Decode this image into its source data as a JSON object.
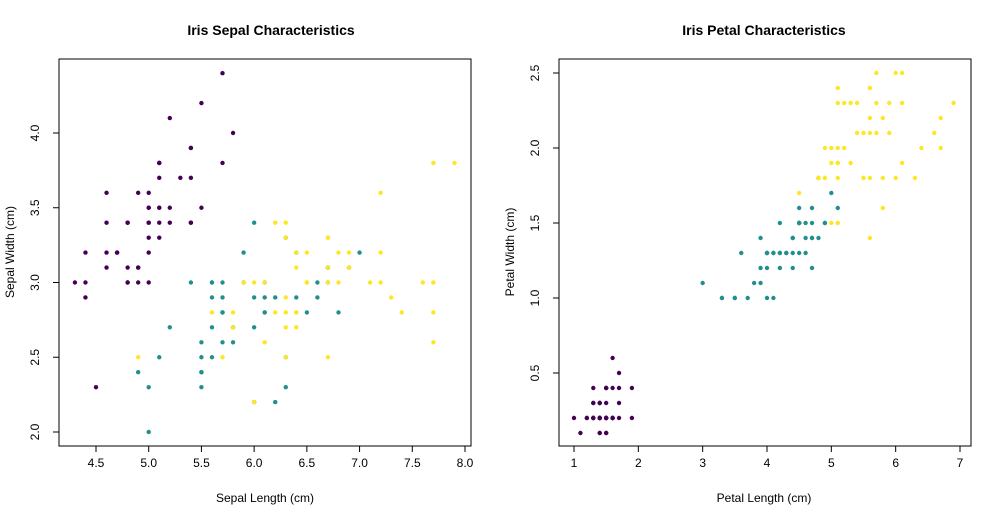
{
  "chart_data": [
    {
      "type": "scatter",
      "title": "Iris Sepal Characteristics",
      "xlabel": "Sepal Length (cm)",
      "ylabel": "Sepal Width (cm)",
      "xlim": [
        4.3,
        7.9
      ],
      "ylim": [
        2.0,
        4.4
      ],
      "xticks": [
        "4.5",
        "5.0",
        "5.5",
        "6.0",
        "6.5",
        "7.0",
        "7.5",
        "8.0"
      ],
      "yticks": [
        "2.0",
        "2.5",
        "3.0",
        "3.5",
        "4.0"
      ],
      "grid": false,
      "legend": "none",
      "series": [
        {
          "color": "#440154",
          "x": [
            5.1,
            4.9,
            4.7,
            4.6,
            5.0,
            5.4,
            4.6,
            5.0,
            4.4,
            4.9,
            5.4,
            4.8,
            4.8,
            4.3,
            5.8,
            5.7,
            5.4,
            5.1,
            5.7,
            5.1,
            5.4,
            5.1,
            4.6,
            5.1,
            4.8,
            5.0,
            5.0,
            5.2,
            5.2,
            4.7,
            4.8,
            5.4,
            5.2,
            5.5,
            4.9,
            5.0,
            5.5,
            4.9,
            4.4,
            5.1,
            5.0,
            4.5,
            4.4,
            5.0,
            5.1,
            4.8,
            5.1,
            4.6,
            5.3,
            5.0
          ],
          "y": [
            3.5,
            3.0,
            3.2,
            3.1,
            3.6,
            3.9,
            3.4,
            3.4,
            2.9,
            3.1,
            3.7,
            3.4,
            3.0,
            3.0,
            4.0,
            4.4,
            3.9,
            3.5,
            3.8,
            3.8,
            3.4,
            3.7,
            3.6,
            3.3,
            3.4,
            3.0,
            3.4,
            3.5,
            3.4,
            3.2,
            3.1,
            3.4,
            4.1,
            4.2,
            3.1,
            3.2,
            3.5,
            3.6,
            3.0,
            3.4,
            3.5,
            2.3,
            3.2,
            3.5,
            3.8,
            3.0,
            3.8,
            3.2,
            3.7,
            3.3
          ]
        },
        {
          "color": "#21908C",
          "x": [
            7.0,
            6.4,
            6.9,
            5.5,
            6.5,
            5.7,
            6.3,
            4.9,
            6.6,
            5.2,
            5.0,
            5.9,
            6.0,
            6.1,
            5.6,
            6.7,
            5.6,
            5.8,
            6.2,
            5.6,
            5.9,
            6.1,
            6.3,
            6.1,
            6.4,
            6.6,
            6.8,
            6.7,
            6.0,
            5.7,
            5.5,
            5.5,
            5.8,
            6.0,
            5.4,
            6.0,
            6.7,
            6.3,
            5.6,
            5.5,
            5.5,
            6.1,
            5.8,
            5.0,
            5.6,
            5.7,
            5.7,
            6.2,
            5.1,
            5.7
          ],
          "y": [
            3.2,
            3.2,
            3.1,
            2.3,
            2.8,
            2.8,
            3.3,
            2.4,
            2.9,
            2.7,
            2.0,
            3.0,
            2.2,
            2.9,
            2.9,
            3.1,
            3.0,
            2.7,
            2.2,
            2.5,
            3.2,
            2.8,
            2.5,
            2.8,
            2.9,
            3.0,
            2.8,
            3.0,
            2.9,
            2.6,
            2.4,
            2.4,
            2.7,
            2.7,
            3.0,
            3.4,
            3.1,
            2.3,
            3.0,
            2.5,
            2.6,
            3.0,
            2.6,
            2.3,
            2.7,
            3.0,
            2.9,
            2.9,
            2.5,
            2.8
          ]
        },
        {
          "color": "#FDE725",
          "x": [
            6.3,
            5.8,
            7.1,
            6.3,
            6.5,
            7.6,
            4.9,
            7.3,
            6.7,
            7.2,
            6.5,
            6.4,
            6.8,
            5.7,
            5.8,
            6.4,
            6.5,
            7.7,
            7.7,
            6.0,
            6.9,
            5.6,
            7.7,
            6.3,
            6.7,
            7.2,
            6.2,
            6.1,
            6.4,
            7.2,
            7.4,
            7.9,
            6.4,
            6.3,
            6.1,
            7.7,
            6.3,
            6.4,
            6.0,
            6.9,
            6.7,
            6.9,
            5.8,
            6.8,
            6.7,
            6.7,
            6.3,
            6.5,
            6.2,
            5.9
          ],
          "y": [
            3.3,
            2.7,
            3.0,
            2.9,
            3.0,
            3.0,
            2.5,
            2.9,
            2.5,
            3.6,
            3.2,
            2.7,
            3.0,
            2.5,
            2.8,
            3.2,
            3.0,
            3.8,
            2.6,
            2.2,
            3.2,
            2.8,
            2.8,
            2.7,
            3.3,
            3.2,
            2.8,
            3.0,
            2.8,
            3.0,
            2.8,
            3.8,
            2.8,
            2.8,
            2.6,
            3.0,
            3.4,
            3.1,
            3.0,
            3.1,
            3.1,
            3.1,
            2.7,
            3.2,
            3.3,
            3.0,
            2.5,
            3.0,
            3.4,
            3.0
          ]
        }
      ]
    },
    {
      "type": "scatter",
      "title": "Iris Petal Characteristics",
      "xlabel": "Petal Length (cm)",
      "ylabel": "Petal Width (cm)",
      "xlim": [
        1.0,
        6.9
      ],
      "ylim": [
        0.1,
        2.5
      ],
      "xticks": [
        "1",
        "2",
        "3",
        "4",
        "5",
        "6",
        "7"
      ],
      "yticks": [
        "0.5",
        "1.0",
        "1.5",
        "2.0",
        "2.5"
      ],
      "grid": false,
      "legend": "none",
      "series": [
        {
          "color": "#440154",
          "x": [
            1.4,
            1.4,
            1.3,
            1.5,
            1.4,
            1.7,
            1.4,
            1.5,
            1.4,
            1.5,
            1.5,
            1.6,
            1.4,
            1.1,
            1.2,
            1.5,
            1.3,
            1.4,
            1.7,
            1.5,
            1.7,
            1.5,
            1.0,
            1.7,
            1.9,
            1.6,
            1.6,
            1.5,
            1.4,
            1.6,
            1.6,
            1.5,
            1.5,
            1.4,
            1.5,
            1.2,
            1.3,
            1.4,
            1.3,
            1.5,
            1.3,
            1.3,
            1.3,
            1.6,
            1.9,
            1.4,
            1.6,
            1.4,
            1.5,
            1.4
          ],
          "y": [
            0.2,
            0.2,
            0.2,
            0.2,
            0.2,
            0.4,
            0.3,
            0.2,
            0.2,
            0.1,
            0.2,
            0.2,
            0.1,
            0.1,
            0.2,
            0.4,
            0.4,
            0.3,
            0.3,
            0.3,
            0.2,
            0.4,
            0.2,
            0.5,
            0.2,
            0.2,
            0.4,
            0.2,
            0.2,
            0.2,
            0.2,
            0.4,
            0.1,
            0.2,
            0.2,
            0.2,
            0.2,
            0.1,
            0.2,
            0.2,
            0.3,
            0.3,
            0.2,
            0.6,
            0.4,
            0.3,
            0.2,
            0.2,
            0.2,
            0.2
          ]
        },
        {
          "color": "#21908C",
          "x": [
            4.7,
            4.5,
            4.9,
            4.0,
            4.6,
            4.5,
            4.7,
            3.3,
            4.6,
            3.9,
            3.5,
            4.2,
            4.0,
            4.7,
            3.6,
            4.4,
            4.5,
            4.1,
            4.5,
            3.9,
            4.8,
            4.0,
            4.9,
            4.7,
            4.3,
            4.4,
            4.8,
            5.0,
            4.5,
            3.5,
            3.8,
            3.7,
            3.9,
            5.1,
            4.5,
            4.5,
            4.7,
            4.4,
            4.1,
            4.0,
            4.4,
            4.6,
            4.0,
            3.3,
            4.2,
            4.2,
            4.2,
            4.3,
            3.0,
            4.1
          ],
          "y": [
            1.4,
            1.5,
            1.5,
            1.3,
            1.5,
            1.3,
            1.6,
            1.0,
            1.3,
            1.4,
            1.0,
            1.5,
            1.0,
            1.4,
            1.3,
            1.4,
            1.5,
            1.0,
            1.5,
            1.1,
            1.8,
            1.3,
            1.5,
            1.2,
            1.3,
            1.4,
            1.4,
            1.7,
            1.5,
            1.0,
            1.1,
            1.0,
            1.2,
            1.6,
            1.5,
            1.6,
            1.5,
            1.3,
            1.3,
            1.3,
            1.2,
            1.4,
            1.2,
            1.0,
            1.3,
            1.2,
            1.3,
            1.3,
            1.1,
            1.3
          ]
        },
        {
          "color": "#FDE725",
          "x": [
            6.0,
            5.1,
            5.9,
            5.6,
            5.8,
            6.6,
            4.5,
            6.3,
            5.8,
            6.1,
            5.1,
            5.3,
            5.5,
            5.0,
            5.1,
            5.3,
            5.5,
            6.7,
            6.9,
            5.0,
            5.7,
            4.9,
            6.7,
            4.9,
            5.7,
            6.0,
            4.8,
            4.9,
            5.6,
            5.8,
            6.1,
            6.4,
            5.6,
            5.1,
            5.6,
            6.1,
            5.6,
            5.5,
            4.8,
            5.4,
            5.6,
            5.1,
            5.1,
            5.9,
            5.7,
            5.2,
            5.0,
            5.2,
            5.4,
            5.1
          ],
          "y": [
            2.5,
            1.9,
            2.1,
            1.8,
            2.2,
            2.1,
            1.7,
            1.8,
            1.8,
            2.5,
            2.0,
            1.9,
            2.1,
            2.0,
            2.4,
            2.3,
            1.8,
            2.2,
            2.3,
            1.5,
            2.3,
            2.0,
            2.0,
            1.8,
            2.1,
            1.8,
            1.8,
            1.8,
            2.1,
            1.6,
            1.9,
            2.0,
            2.2,
            1.5,
            1.4,
            2.3,
            2.4,
            1.8,
            1.8,
            2.1,
            2.4,
            2.3,
            1.9,
            2.3,
            2.5,
            2.3,
            1.9,
            2.0,
            2.3,
            1.8
          ]
        }
      ]
    }
  ]
}
